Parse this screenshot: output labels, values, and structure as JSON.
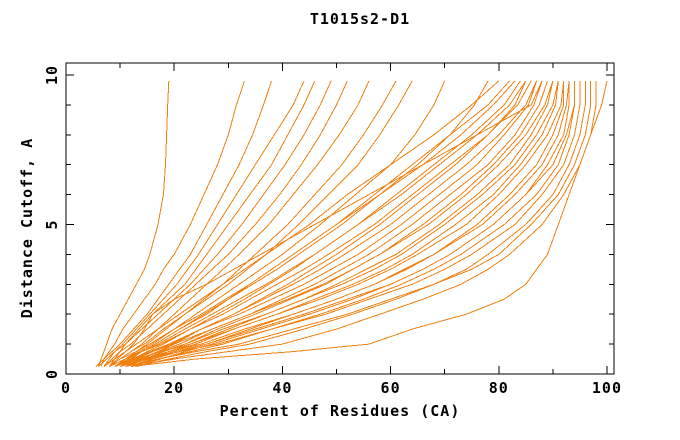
{
  "title": "T1015s2-D1",
  "colors": {
    "curve": "#f08010",
    "axis": "#000000",
    "background": "#ffffff",
    "text": "#000000"
  },
  "chart_data": {
    "type": "line",
    "title": "T1015s2-D1",
    "xlabel": "Percent of Residues (CA)",
    "ylabel": "Distance Cutoff, A",
    "xlim": [
      0,
      101.3
    ],
    "ylim": [
      0,
      10.4
    ],
    "grid": false,
    "legend": "none",
    "x_major_ticks": [
      0,
      20,
      40,
      60,
      80,
      100
    ],
    "x_minor_ticks": [
      10,
      30,
      50,
      70,
      90
    ],
    "y_major_ticks": [
      0,
      5,
      10
    ],
    "y_minor_ticks": [
      1,
      2,
      3,
      4,
      6,
      7,
      8,
      9
    ],
    "cutoffs": [
      0.25,
      0.5,
      0.75,
      1,
      1.5,
      2,
      2.5,
      3,
      3.5,
      4,
      5,
      6,
      7,
      8,
      9,
      9.8
    ],
    "models": [
      [
        6,
        6.5,
        7,
        7.5,
        8.5,
        10,
        11.5,
        13,
        14.5,
        15.5,
        17,
        18,
        18.4,
        18.6,
        18.8,
        19
      ],
      [
        6.5,
        7,
        8,
        9,
        10.5,
        12.5,
        14.5,
        16.5,
        18,
        20,
        23,
        25.5,
        28,
        30,
        31.5,
        33
      ],
      [
        5.5,
        7,
        8.5,
        10,
        12.5,
        15,
        17,
        19,
        21,
        23,
        26,
        29,
        32,
        34.5,
        36.5,
        38
      ],
      [
        7,
        8,
        9,
        10.5,
        13,
        15.5,
        18,
        20.5,
        22.5,
        24.5,
        28,
        31.5,
        35,
        38.5,
        42,
        44
      ],
      [
        8,
        9,
        10,
        11,
        13.5,
        16,
        19,
        22,
        24,
        26,
        30,
        34,
        38,
        41,
        44,
        46
      ],
      [
        6,
        7.5,
        9,
        11,
        14,
        17,
        20,
        23,
        25.5,
        28,
        32.5,
        36.5,
        40.5,
        44,
        47,
        49
      ],
      [
        7,
        8.5,
        10,
        12,
        15,
        18,
        21,
        24,
        27,
        30,
        35,
        39.5,
        43.5,
        47,
        50,
        52
      ],
      [
        8,
        10,
        12,
        14,
        17,
        20,
        23,
        26,
        29,
        32,
        37.5,
        42,
        46.5,
        50.5,
        54,
        56
      ],
      [
        9,
        11,
        13,
        15,
        18.5,
        22,
        25.5,
        29,
        32,
        35,
        41,
        46,
        51,
        55,
        58.5,
        61
      ],
      [
        8,
        10,
        12,
        14.5,
        18,
        22,
        26,
        30,
        33.5,
        37,
        43,
        48.5,
        54,
        58,
        61.5,
        64
      ],
      [
        9,
        11,
        13.5,
        16,
        20,
        24,
        28,
        32,
        36,
        40,
        47,
        53.5,
        60,
        64.5,
        68,
        70
      ],
      [
        10,
        12,
        14,
        16.5,
        21,
        25.5,
        30,
        34.5,
        39,
        43,
        51,
        58,
        65,
        71,
        75.5,
        78
      ],
      [
        7,
        9,
        11,
        13,
        17,
        21,
        25,
        29,
        33,
        37,
        45,
        52,
        60,
        68,
        75,
        80
      ],
      [
        9,
        11.5,
        14,
        16.5,
        21,
        26,
        30,
        34,
        38,
        42,
        50,
        57,
        64,
        71,
        78,
        82
      ],
      [
        8,
        10,
        13,
        15.5,
        20,
        25,
        29.5,
        34,
        38,
        42,
        50,
        58,
        66,
        73,
        79,
        83
      ],
      [
        10,
        12.5,
        15,
        18,
        23,
        28,
        33,
        37.5,
        42,
        46,
        54,
        61,
        68,
        75,
        81,
        84
      ],
      [
        9,
        11.5,
        14,
        17,
        22,
        27,
        32,
        37,
        41.5,
        46,
        54,
        62,
        69,
        76,
        82,
        85
      ],
      [
        11,
        14,
        17,
        20,
        25,
        31,
        36,
        41,
        45.5,
        50,
        58,
        65,
        72,
        78,
        83,
        85
      ],
      [
        8,
        11,
        14,
        17.5,
        23,
        29,
        34,
        39,
        44,
        48.5,
        57,
        64,
        71,
        78,
        83.5,
        86
      ],
      [
        10,
        13,
        16,
        19.5,
        25,
        31,
        36.5,
        42,
        47,
        51.5,
        60,
        67,
        74,
        80,
        85,
        87
      ],
      [
        9,
        12,
        15.5,
        19,
        25,
        32,
        38,
        44,
        49,
        54,
        62,
        69,
        76,
        81,
        85.5,
        87
      ],
      [
        10,
        13.5,
        17,
        21,
        27,
        34,
        40,
        46,
        51,
        56,
        64,
        71,
        78,
        83,
        86.5,
        88
      ],
      [
        8,
        9.5,
        11,
        12.5,
        14.5,
        16,
        20,
        26,
        31,
        36,
        46,
        56,
        66,
        76,
        86,
        88
      ],
      [
        11,
        14.5,
        18,
        22,
        28,
        35,
        41.5,
        48,
        53,
        58,
        66,
        73,
        79,
        84,
        87.5,
        89
      ],
      [
        9,
        12.5,
        16,
        20,
        27,
        34,
        41,
        47.5,
        53,
        58,
        67,
        74,
        80,
        85,
        88.5,
        90
      ],
      [
        12,
        15.5,
        19,
        23,
        30,
        37,
        44,
        50,
        55.5,
        61,
        69,
        76,
        82,
        86,
        89,
        90
      ],
      [
        10,
        13.5,
        17.5,
        22,
        29,
        37,
        44,
        51,
        57,
        62,
        70,
        77,
        83,
        87,
        90,
        91
      ],
      [
        11,
        15,
        19,
        24,
        31,
        39,
        46,
        53,
        59,
        64,
        72,
        79,
        84,
        88,
        90.5,
        91
      ],
      [
        9,
        13,
        17.5,
        23,
        31,
        39,
        47,
        54,
        60,
        65,
        74,
        80,
        85,
        89,
        91.5,
        92
      ],
      [
        12,
        16,
        21,
        26,
        34,
        42,
        50,
        57,
        62.5,
        68,
        76,
        82,
        87,
        90,
        92,
        92
      ],
      [
        10,
        14,
        19,
        25,
        33,
        42,
        50,
        57,
        63,
        68,
        77,
        83,
        88,
        91,
        92.5,
        93
      ],
      [
        13,
        17.5,
        22,
        27,
        36,
        45,
        53,
        60,
        66,
        71,
        79,
        85,
        89,
        92,
        93,
        93
      ],
      [
        11,
        15,
        20,
        26,
        35,
        44,
        52,
        60,
        66,
        71,
        79,
        85,
        90,
        92.5,
        94,
        94
      ],
      [
        12,
        17,
        23,
        29,
        38,
        47,
        55,
        62,
        68,
        73,
        81,
        87,
        91,
        93,
        94,
        94
      ],
      [
        10,
        15,
        21,
        28,
        38,
        48,
        56,
        64,
        70,
        75,
        83,
        88,
        92,
        94,
        95,
        95
      ],
      [
        13,
        19,
        26,
        34,
        44,
        53,
        61,
        68,
        74,
        78,
        85,
        90,
        93,
        95,
        96,
        96
      ],
      [
        11,
        17,
        24,
        32,
        42,
        52,
        60,
        68,
        75,
        80,
        86,
        91,
        94,
        96,
        97,
        97
      ],
      [
        12,
        20,
        30,
        40,
        50,
        58,
        66,
        73,
        78,
        82,
        88,
        92,
        95,
        97,
        98,
        98
      ],
      [
        12,
        24,
        42,
        56,
        64,
        74,
        81,
        85,
        87,
        89,
        91,
        93,
        95,
        97,
        99,
        100
      ]
    ]
  }
}
